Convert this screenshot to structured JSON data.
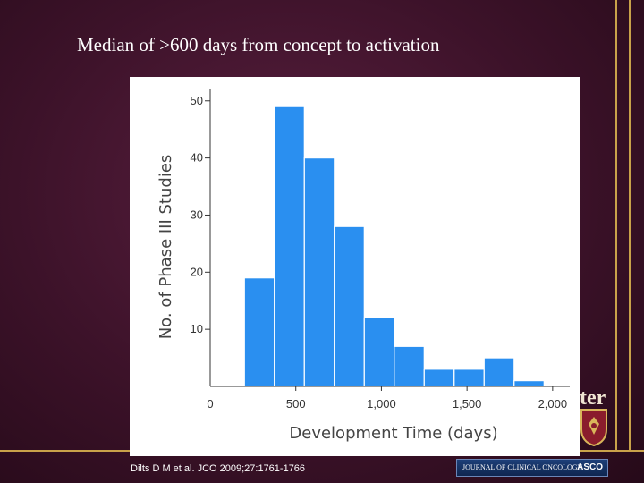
{
  "slide": {
    "title": "Median of >600 days from concept to activation",
    "citation": "Dilts D M et al. JCO 2009;27:1761-1766",
    "partial_word": "ter",
    "journal_banner": "JOURNAL OF CLINICAL ONCOLOGY",
    "asco": "ASCO"
  },
  "colors": {
    "bar": "#2a8ff0",
    "gold": "#c9a24a",
    "axis": "#333333"
  },
  "chart_data": {
    "type": "bar",
    "title": "",
    "xlabel": "Development Time (days)",
    "ylabel": "No. of Phase III Studies",
    "xlim": [
      0,
      2100
    ],
    "ylim": [
      0,
      52
    ],
    "bins": [
      {
        "start": 200,
        "end": 375,
        "value": 19
      },
      {
        "start": 375,
        "end": 550,
        "value": 49
      },
      {
        "start": 550,
        "end": 725,
        "value": 40
      },
      {
        "start": 725,
        "end": 900,
        "value": 28
      },
      {
        "start": 900,
        "end": 1075,
        "value": 12
      },
      {
        "start": 1075,
        "end": 1250,
        "value": 7
      },
      {
        "start": 1250,
        "end": 1425,
        "value": 3
      },
      {
        "start": 1425,
        "end": 1600,
        "value": 3
      },
      {
        "start": 1600,
        "end": 1775,
        "value": 5
      },
      {
        "start": 1775,
        "end": 1950,
        "value": 1
      }
    ],
    "x_ticks": [
      {
        "value": 0,
        "label": "0"
      },
      {
        "value": 500,
        "label": "500"
      },
      {
        "value": 1000,
        "label": "1,000"
      },
      {
        "value": 1500,
        "label": "1,500"
      },
      {
        "value": 2000,
        "label": "2,000"
      }
    ],
    "y_ticks": [
      {
        "value": 10,
        "label": "10"
      },
      {
        "value": 20,
        "label": "20"
      },
      {
        "value": 30,
        "label": "30"
      },
      {
        "value": 40,
        "label": "40"
      },
      {
        "value": 50,
        "label": "50"
      }
    ]
  }
}
